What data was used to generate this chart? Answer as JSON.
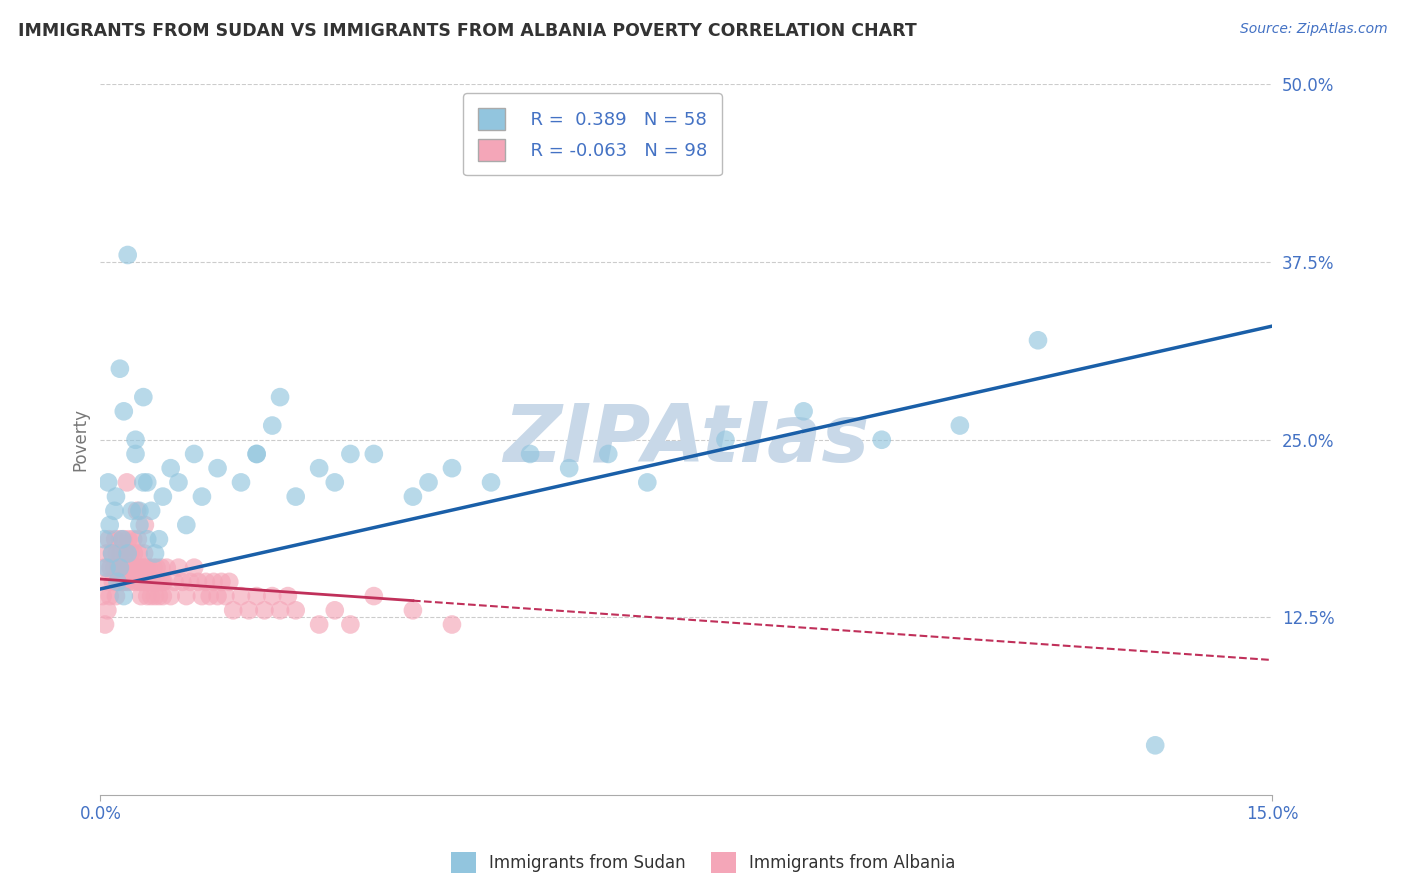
{
  "title": "IMMIGRANTS FROM SUDAN VS IMMIGRANTS FROM ALBANIA POVERTY CORRELATION CHART",
  "source": "Source: ZipAtlas.com",
  "ylabel": "Poverty",
  "xlim": [
    0.0,
    15.0
  ],
  "ylim": [
    0.0,
    50.0
  ],
  "xtick_labels": [
    "0.0%",
    "15.0%"
  ],
  "ytick_labels": [
    "12.5%",
    "25.0%",
    "37.5%",
    "50.0%"
  ],
  "ytick_values": [
    12.5,
    25.0,
    37.5,
    50.0
  ],
  "legend_label1": "Immigrants from Sudan",
  "legend_label2": "Immigrants from Albania",
  "R1": 0.389,
  "N1": 58,
  "R2": -0.063,
  "N2": 98,
  "color_sudan": "#92C5DE",
  "color_albania": "#F4A6B8",
  "line_color_sudan": "#1A5FA8",
  "line_color_albania": "#C0305A",
  "watermark": "ZIPAtlas",
  "watermark_color": "#C8D8E8",
  "background_color": "#FFFFFF",
  "title_color": "#333333",
  "axis_label_color": "#777777",
  "tick_color": "#4472C4",
  "source_color": "#4472C4",
  "sudan_line_x0": 0.0,
  "sudan_line_y0": 14.5,
  "sudan_line_x1": 15.0,
  "sudan_line_y1": 33.0,
  "albania_line_x0": 0.0,
  "albania_line_y0": 15.2,
  "albania_line_x1": 15.0,
  "albania_line_y1": 9.5,
  "sudan_x": [
    0.05,
    0.08,
    0.1,
    0.12,
    0.15,
    0.18,
    0.2,
    0.22,
    0.25,
    0.28,
    0.3,
    0.35,
    0.4,
    0.45,
    0.5,
    0.55,
    0.6,
    0.65,
    0.7,
    0.8,
    0.9,
    1.0,
    1.1,
    1.2,
    1.3,
    1.5,
    1.8,
    2.0,
    2.2,
    2.5,
    2.8,
    3.0,
    3.5,
    4.0,
    4.5,
    5.0,
    5.5,
    6.0,
    6.5,
    7.0,
    8.0,
    9.0,
    10.0,
    11.0,
    12.0,
    0.3,
    0.45,
    0.5,
    0.6,
    0.75,
    2.3,
    3.2,
    4.2,
    0.35,
    0.55,
    2.0,
    0.25,
    13.5
  ],
  "sudan_y": [
    18.0,
    16.0,
    22.0,
    19.0,
    17.0,
    20.0,
    21.0,
    15.0,
    16.0,
    18.0,
    14.0,
    17.0,
    20.0,
    24.0,
    19.0,
    22.0,
    18.0,
    20.0,
    17.0,
    21.0,
    23.0,
    22.0,
    19.0,
    24.0,
    21.0,
    23.0,
    22.0,
    24.0,
    26.0,
    21.0,
    23.0,
    22.0,
    24.0,
    21.0,
    23.0,
    22.0,
    24.0,
    23.0,
    24.0,
    22.0,
    25.0,
    27.0,
    25.0,
    26.0,
    32.0,
    27.0,
    25.0,
    20.0,
    22.0,
    18.0,
    28.0,
    24.0,
    22.0,
    38.0,
    28.0,
    24.0,
    30.0,
    3.5
  ],
  "albania_x": [
    0.03,
    0.05,
    0.06,
    0.08,
    0.09,
    0.1,
    0.11,
    0.12,
    0.13,
    0.15,
    0.16,
    0.18,
    0.19,
    0.2,
    0.21,
    0.22,
    0.23,
    0.25,
    0.26,
    0.28,
    0.29,
    0.3,
    0.31,
    0.32,
    0.33,
    0.35,
    0.36,
    0.38,
    0.39,
    0.4,
    0.41,
    0.42,
    0.43,
    0.45,
    0.46,
    0.48,
    0.49,
    0.5,
    0.51,
    0.52,
    0.53,
    0.55,
    0.56,
    0.58,
    0.59,
    0.6,
    0.61,
    0.62,
    0.63,
    0.65,
    0.66,
    0.68,
    0.69,
    0.7,
    0.71,
    0.72,
    0.73,
    0.75,
    0.76,
    0.78,
    0.79,
    0.8,
    0.81,
    0.85,
    0.9,
    0.95,
    1.0,
    1.05,
    1.1,
    1.15,
    1.2,
    1.25,
    1.3,
    1.35,
    1.4,
    1.45,
    1.5,
    1.55,
    1.6,
    1.65,
    1.7,
    1.8,
    1.9,
    2.0,
    2.1,
    2.2,
    2.3,
    2.4,
    2.5,
    2.8,
    3.0,
    3.2,
    3.5,
    4.0,
    4.5,
    0.34,
    0.47,
    0.57
  ],
  "albania_y": [
    14.0,
    16.0,
    12.0,
    17.0,
    13.0,
    15.0,
    18.0,
    14.0,
    16.0,
    17.0,
    15.0,
    16.0,
    18.0,
    14.0,
    17.0,
    15.0,
    16.0,
    18.0,
    17.0,
    15.0,
    16.0,
    18.0,
    15.0,
    17.0,
    16.0,
    15.0,
    18.0,
    16.0,
    17.0,
    15.0,
    16.0,
    18.0,
    17.0,
    15.0,
    16.0,
    18.0,
    17.0,
    15.0,
    16.0,
    14.0,
    15.0,
    16.0,
    17.0,
    15.0,
    16.0,
    14.0,
    15.0,
    16.0,
    15.0,
    14.0,
    15.0,
    16.0,
    15.0,
    14.0,
    15.0,
    16.0,
    15.0,
    14.0,
    15.0,
    16.0,
    15.0,
    14.0,
    15.0,
    16.0,
    14.0,
    15.0,
    16.0,
    15.0,
    14.0,
    15.0,
    16.0,
    15.0,
    14.0,
    15.0,
    14.0,
    15.0,
    14.0,
    15.0,
    14.0,
    15.0,
    13.0,
    14.0,
    13.0,
    14.0,
    13.0,
    14.0,
    13.0,
    14.0,
    13.0,
    12.0,
    13.0,
    12.0,
    14.0,
    13.0,
    12.0,
    22.0,
    20.0,
    19.0
  ]
}
